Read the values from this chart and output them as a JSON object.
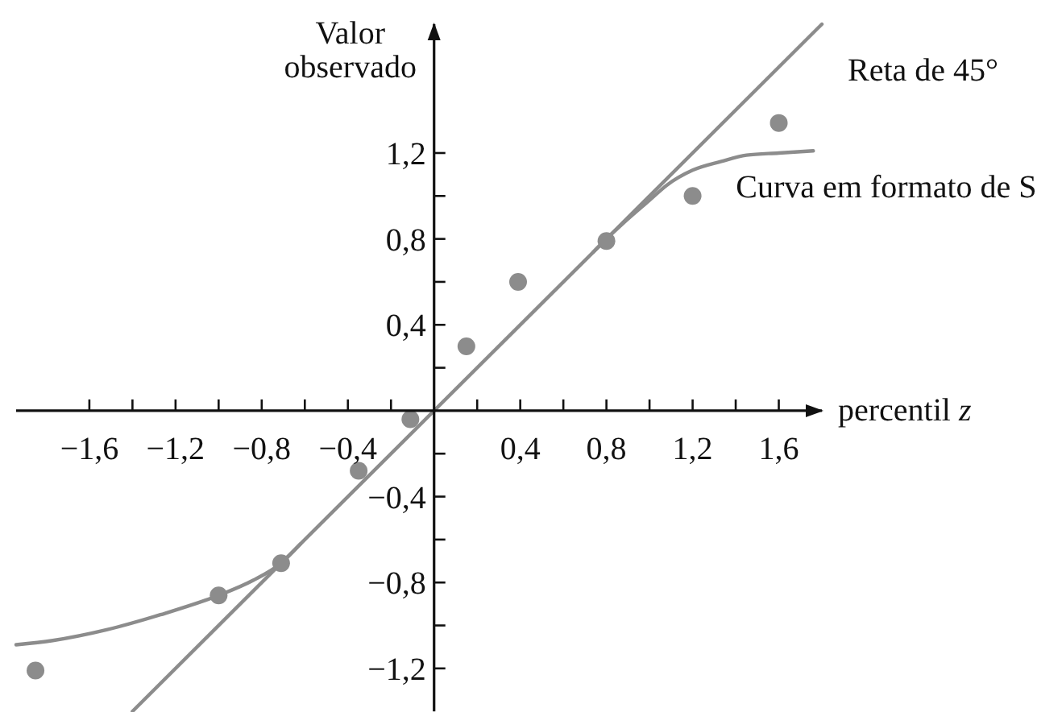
{
  "chart_data": {
    "type": "scatter",
    "xlabel": "percentil z",
    "ylabel": "Valor observado",
    "xlim": [
      -1.94,
      1.8
    ],
    "ylim": [
      -1.4,
      1.8
    ],
    "xticks": [
      {
        "value": -1.6,
        "label": "−1,6"
      },
      {
        "value": -1.4,
        "label": null
      },
      {
        "value": -1.2,
        "label": "−1,2"
      },
      {
        "value": -1,
        "label": null
      },
      {
        "value": -0.8,
        "label": "−0,8"
      },
      {
        "value": -0.6,
        "label": null
      },
      {
        "value": -0.4,
        "label": "−0,4"
      },
      {
        "value": -0.2,
        "label": null
      },
      {
        "value": 0.2,
        "label": null
      },
      {
        "value": 0.4,
        "label": "0,4"
      },
      {
        "value": 0.6,
        "label": null
      },
      {
        "value": 0.8,
        "label": "0,8"
      },
      {
        "value": 1,
        "label": null
      },
      {
        "value": 1.2,
        "label": "1,2"
      },
      {
        "value": 1.4,
        "label": null
      },
      {
        "value": 1.6,
        "label": "1,6"
      }
    ],
    "yticks": [
      {
        "value": -1.2,
        "label": "−1,2"
      },
      {
        "value": -1,
        "label": null
      },
      {
        "value": -0.8,
        "label": "−0,8"
      },
      {
        "value": -0.6,
        "label": null
      },
      {
        "value": -0.4,
        "label": "−0,4"
      },
      {
        "value": -0.2,
        "label": null
      },
      {
        "value": 0.2,
        "label": null
      },
      {
        "value": 0.4,
        "label": "0,4"
      },
      {
        "value": 0.6,
        "label": null
      },
      {
        "value": 0.8,
        "label": "0,8"
      },
      {
        "value": 1,
        "label": null
      },
      {
        "value": 1.2,
        "label": "1,2"
      }
    ],
    "series": [
      {
        "type": "line",
        "name": "Reta de 45°",
        "color": "#8c8c8c",
        "x": [
          -1.4,
          1.8
        ],
        "values": [
          -1.4,
          1.8
        ]
      },
      {
        "type": "line",
        "name": "Curva em formato de S",
        "color": "#8c8c8c",
        "x": [
          -1.94,
          -1.77,
          -1.52,
          -1.27,
          -1.0,
          -0.84,
          -0.71,
          -0.62,
          -0.1,
          0.74,
          0.8,
          0.88,
          1.0,
          1.08,
          1.2,
          1.33,
          1.45,
          1.6,
          1.76
        ],
        "values": [
          -1.09,
          -1.07,
          -1.02,
          -0.95,
          -0.86,
          -0.79,
          -0.71,
          -0.62,
          null,
          0.74,
          0.8,
          0.875,
          0.98,
          1.05,
          1.12,
          1.16,
          1.19,
          1.2,
          1.21
        ]
      },
      {
        "marker": "circle",
        "color": "#8c8c8c",
        "x": [
          -1.85,
          -1.0,
          -0.71,
          -0.35,
          -0.11,
          0.15,
          0.39,
          0.8,
          1.2,
          1.6
        ],
        "values": [
          -1.21,
          -0.86,
          -0.71,
          -0.28,
          -0.04,
          0.3,
          0.6,
          0.79,
          1.0,
          1.34
        ]
      }
    ]
  }
}
